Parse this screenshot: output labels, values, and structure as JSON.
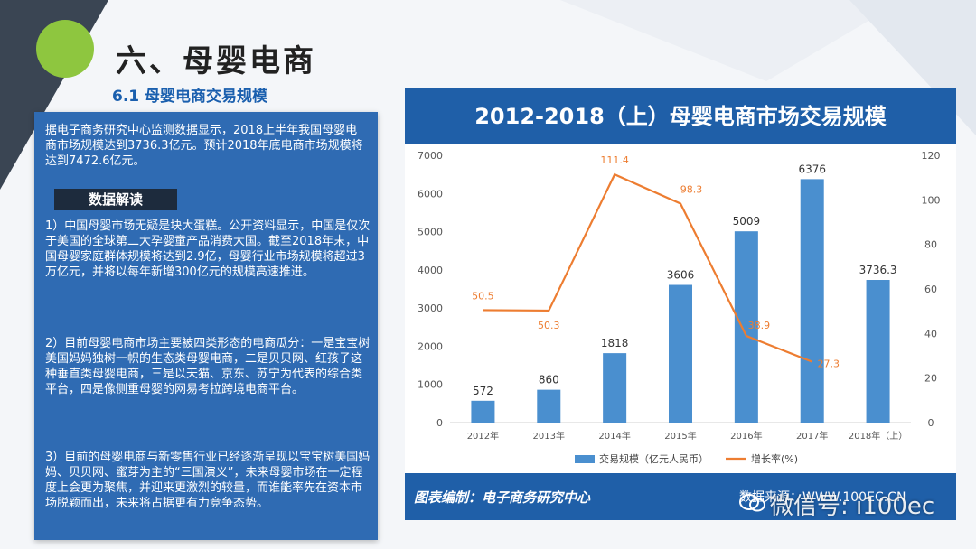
{
  "page": {
    "title": "六、母婴电商",
    "subtitle": "6.1 母婴电商交易规模"
  },
  "left_panel": {
    "intro": "据电子商务研究中心监测数据显示，2018上半年我国母婴电商市场规模达到3736.3亿元。预计2018年底电商市场规模将达到7472.6亿元。",
    "tag": "数据解读",
    "p1": "1）中国母婴市场无疑是块大蛋糕。公开资料显示，中国是仅次于美国的全球第二大孕婴童产品消费大国。截至2018年末，中国母婴家庭群体规模将达到2.9亿，母婴行业市场规模将超过3万亿元，并将以每年新增300亿元的规模高速推进。",
    "p2": "2）目前母婴电商市场主要被四类形态的电商瓜分：一是宝宝树美国妈妈独树一帜的生态类母婴电商，二是贝贝网、红孩子这种垂直类母婴电商，三是以天猫、京东、苏宁为代表的综合类平台，四是像侧重母婴的网易考拉跨境电商平台。",
    "p3": "3）目前的母婴电商与新零售行业已经逐渐呈现以宝宝树美国妈妈、贝贝网、蜜芽为主的“三国演义”，未来母婴市场在一定程度上会更为聚焦，并迎来更激烈的较量，而谁能率先在资本市场脱颖而出，未来将占据更有力竞争态势。"
  },
  "chart_card": {
    "footer_left": "图表编制：电子商务研究中心",
    "footer_right": "数据来源：WWW.100EC.CN"
  },
  "watermark": "微信号: i100ec",
  "colors": {
    "bar": "#4a8fcf",
    "line": "#ed7d31",
    "header": "#1f5fa8"
  },
  "chart_data": {
    "type": "bar",
    "title": "2012-2018（上）母婴电商市场交易规模",
    "categories": [
      "2012年",
      "2013年",
      "2014年",
      "2015年",
      "2016年",
      "2017年",
      "2018年（上）"
    ],
    "series": [
      {
        "name": "交易规模（亿元人民币）",
        "type": "bar",
        "axis": "left",
        "values": [
          572,
          860,
          1818,
          3606,
          5009,
          6376,
          3736.3
        ],
        "labels": [
          "572",
          "860",
          "1818",
          "3606",
          "5009",
          "6376",
          "3736.3"
        ]
      },
      {
        "name": "增长率(%)",
        "type": "line",
        "axis": "right",
        "values": [
          50.5,
          50.3,
          111.4,
          98.3,
          38.9,
          27.3,
          null
        ],
        "labels": [
          "50.5",
          "50.3",
          "111.4",
          "98.3",
          "38.9",
          "27.3",
          ""
        ]
      }
    ],
    "y_left": {
      "range": [
        0,
        7000
      ],
      "ticks": [
        "0",
        "1000",
        "2000",
        "3000",
        "4000",
        "5000",
        "6000",
        "7000"
      ]
    },
    "y_right": {
      "range": [
        0,
        120
      ],
      "ticks": [
        "0",
        "20",
        "40",
        "60",
        "80",
        "100",
        "120"
      ]
    },
    "legend_position": "bottom",
    "grid": false
  }
}
